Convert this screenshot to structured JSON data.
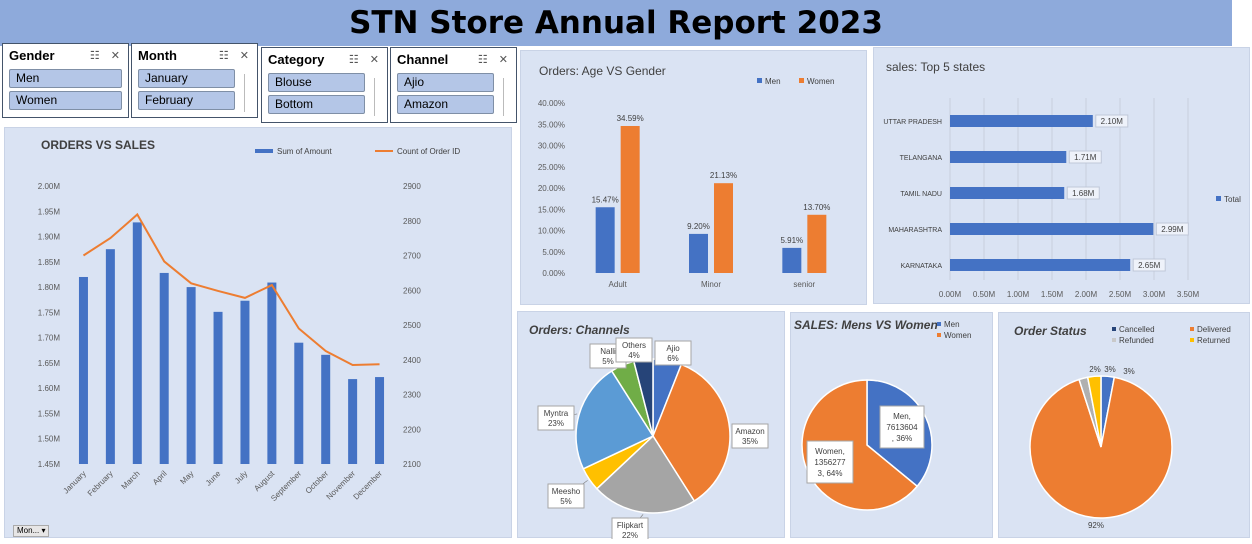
{
  "title": "STN Store Annual Report 2023",
  "slicers": [
    {
      "title": "Gender",
      "items": [
        "Men",
        "Women"
      ]
    },
    {
      "title": "Month",
      "items": [
        "January",
        "February"
      ]
    },
    {
      "title": "Category",
      "items": [
        "Blouse",
        "Bottom"
      ]
    },
    {
      "title": "Channel",
      "items": [
        "Ajio",
        "Amazon"
      ]
    }
  ],
  "month_filter_button": "Mon...",
  "colors": {
    "blue": "#4472c4",
    "orange": "#ed7d31",
    "gray": "#a5a5a5",
    "yellow": "#ffc000",
    "lightblue": "#5b9bd5",
    "green": "#70ad47",
    "navy": "#264478"
  },
  "chart_data": [
    {
      "type": "bar+line",
      "title": "ORDERS VS SALES",
      "legend": [
        "Sum of Amount",
        "Count of Order ID"
      ],
      "categories": [
        "January",
        "February",
        "March",
        "April",
        "May",
        "June",
        "July",
        "August",
        "September",
        "October",
        "November",
        "December"
      ],
      "series": [
        {
          "name": "Sum of Amount",
          "values": [
            1.82,
            1.875,
            1.928,
            1.828,
            1.8,
            1.751,
            1.773,
            1.809,
            1.69,
            1.666,
            1.618,
            1.622
          ]
        },
        {
          "name": "Count of Order ID",
          "values": [
            2700,
            2750,
            2818,
            2683,
            2620,
            2598,
            2578,
            2615,
            2490,
            2425,
            2385,
            2387
          ]
        }
      ],
      "y_ticks": [
        "2.00M",
        "1.95M",
        "1.90M",
        "1.85M",
        "1.80M",
        "1.75M",
        "1.70M",
        "1.65M",
        "1.60M",
        "1.55M",
        "1.50M",
        "1.45M"
      ],
      "y2_ticks": [
        "2900",
        "2800",
        "2700",
        "2600",
        "2500",
        "2400",
        "2300",
        "2200",
        "2100"
      ],
      "ylim": [
        1.45,
        2.0
      ],
      "y2lim": [
        2100,
        2900
      ]
    },
    {
      "type": "bar",
      "title": "Orders: Age VS Gender",
      "legend": [
        "Men",
        "Women"
      ],
      "categories": [
        "Adult",
        "Minor",
        "senior"
      ],
      "series": [
        {
          "name": "Men",
          "values": [
            15.47,
            9.2,
            5.91
          ],
          "labels": [
            "15.47%",
            "9.20%",
            "5.91%"
          ]
        },
        {
          "name": "Women",
          "values": [
            34.59,
            21.13,
            13.7
          ],
          "labels": [
            "34.59%",
            "21.13%",
            "13.70%"
          ]
        }
      ],
      "y_ticks": [
        "40.00%",
        "35.00%",
        "30.00%",
        "25.00%",
        "20.00%",
        "15.00%",
        "10.00%",
        "5.00%",
        "0.00%"
      ],
      "ylim": [
        0,
        40
      ]
    },
    {
      "type": "bar",
      "title": "sales: Top 5 states",
      "legend": [
        "Total"
      ],
      "categories": [
        "UTTAR PRADESH",
        "TELANGANA",
        "TAMIL NADU",
        "MAHARASHTRA",
        "KARNATAKA"
      ],
      "values": [
        2.1,
        1.71,
        1.68,
        2.99,
        2.65
      ],
      "labels": [
        "2.10M",
        "1.71M",
        "1.68M",
        "2.99M",
        "2.65M"
      ],
      "x_ticks": [
        "0.00M",
        "0.50M",
        "1.00M",
        "1.50M",
        "2.00M",
        "2.50M",
        "3.00M",
        "3.50M"
      ],
      "xlim": [
        0,
        3.5
      ]
    },
    {
      "type": "pie",
      "title": "Orders: Channels",
      "slices": [
        {
          "name": "Ajio",
          "value": 6,
          "label": "Ajio\n6%"
        },
        {
          "name": "Amazon",
          "value": 35,
          "label": "Amazon\n35%"
        },
        {
          "name": "Flipkart",
          "value": 22,
          "label": "Flipkart\n22%"
        },
        {
          "name": "Meesho",
          "value": 5,
          "label": "Meesho\n5%"
        },
        {
          "name": "Myntra",
          "value": 23,
          "label": "Myntra\n23%"
        },
        {
          "name": "Nalli",
          "value": 5,
          "label": "Nalli\n5%"
        },
        {
          "name": "Others",
          "value": 4,
          "label": "Others\n4%"
        }
      ]
    },
    {
      "type": "pie",
      "title": "SALES: Mens VS Women",
      "legend": [
        "Men",
        "Women"
      ],
      "slices": [
        {
          "name": "Men",
          "value": 7613604,
          "label": "Men,\n7613604\n, 36%"
        },
        {
          "name": "Women",
          "value": 13562773,
          "label": "Women,\n1356277\n3, 64%"
        }
      ]
    },
    {
      "type": "pie",
      "title": "Order Status",
      "legend": [
        "Cancelled",
        "Delivered",
        "Refunded",
        "Returned"
      ],
      "slices": [
        {
          "name": "Cancelled",
          "value": 3,
          "label": "3%"
        },
        {
          "name": "Delivered",
          "value": 92,
          "label": "92%"
        },
        {
          "name": "Refunded",
          "value": 2,
          "label": "2%"
        },
        {
          "name": "Returned",
          "value": 3,
          "label": "3%"
        }
      ]
    }
  ]
}
